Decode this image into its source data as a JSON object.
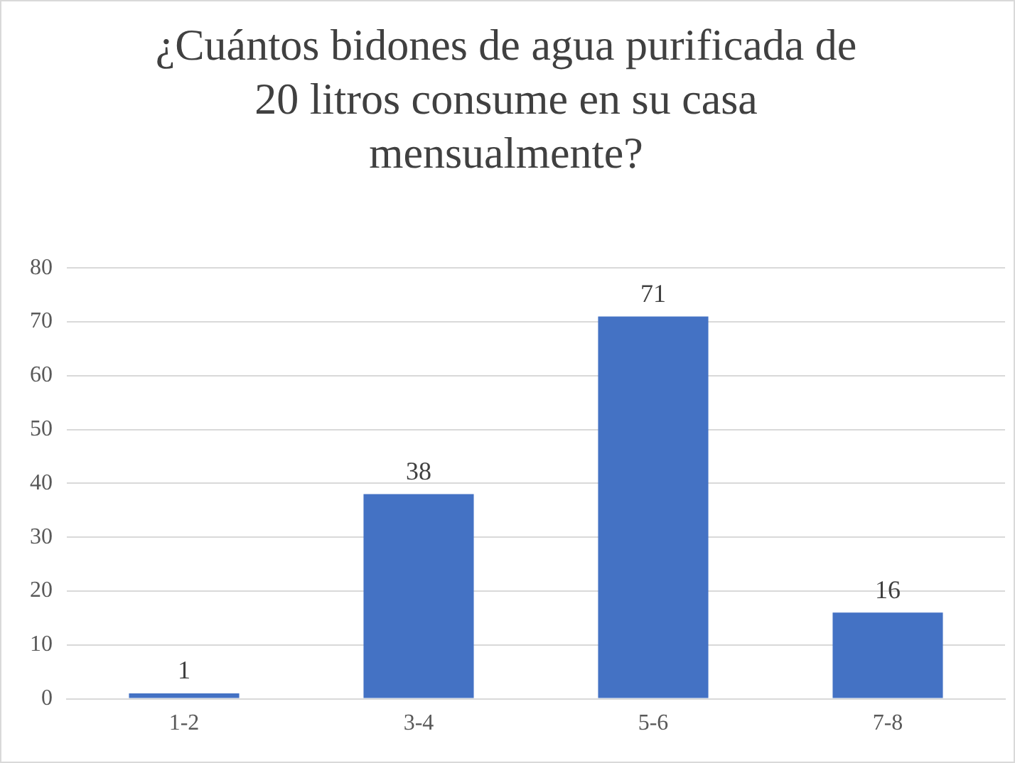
{
  "chart_data": {
    "type": "bar",
    "title": "¿Cuántos bidones de agua purificada de 20 litros consume en su casa mensualmente?",
    "categories": [
      "1-2",
      "3-4",
      "5-6",
      "7-8"
    ],
    "values": [
      1,
      38,
      71,
      16
    ],
    "color": "#4472c4",
    "ylim": [
      0,
      80
    ],
    "yticks": [
      0,
      10,
      20,
      30,
      40,
      50,
      60,
      70,
      80
    ],
    "grid": "y",
    "data_labels": true
  }
}
